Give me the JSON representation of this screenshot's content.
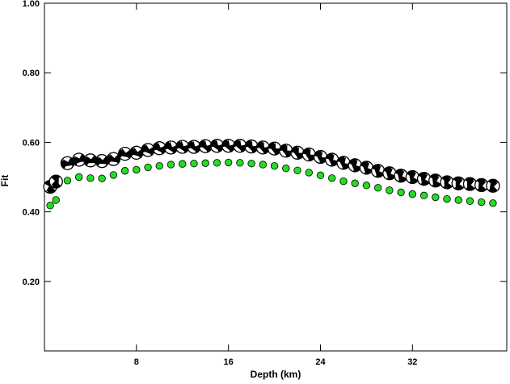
{
  "chart_data": {
    "type": "scatter",
    "title": "",
    "xlabel": "Depth (km)",
    "ylabel": "Fit",
    "xlim": [
      0,
      40.2
    ],
    "ylim": [
      0,
      1.0
    ],
    "xticks": [
      8,
      16,
      24,
      32
    ],
    "yticks": [
      0.2,
      0.4,
      0.6,
      0.8,
      1.0
    ],
    "ytick_labels": [
      "0.20",
      "0.40",
      "0.60",
      "0.80",
      "1.00"
    ],
    "grid": false,
    "colors": {
      "axes": "#000000",
      "mechanism_fill": "#000000",
      "mechanism_light": "#ffffff",
      "marker_fill": "#22dd22",
      "marker_stroke": "#000000"
    },
    "series": [
      {
        "style": "focal-mechanism",
        "x": [
          0.5,
          1,
          2,
          3,
          4,
          5,
          6,
          7,
          8,
          9,
          10,
          11,
          12,
          13,
          14,
          15,
          16,
          17,
          18,
          19,
          20,
          21,
          22,
          23,
          24,
          25,
          26,
          27,
          28,
          29,
          30,
          31,
          32,
          33,
          34,
          35,
          36,
          37,
          38,
          39
        ],
        "y": [
          0.472,
          0.487,
          0.54,
          0.55,
          0.548,
          0.546,
          0.552,
          0.567,
          0.57,
          0.578,
          0.583,
          0.585,
          0.587,
          0.587,
          0.589,
          0.59,
          0.59,
          0.59,
          0.588,
          0.585,
          0.582,
          0.576,
          0.57,
          0.565,
          0.558,
          0.55,
          0.541,
          0.534,
          0.527,
          0.518,
          0.511,
          0.504,
          0.5,
          0.495,
          0.49,
          0.485,
          0.482,
          0.48,
          0.477,
          0.475
        ],
        "rotation": [
          30,
          40,
          120,
          115,
          125,
          130,
          135,
          140,
          145,
          150,
          155,
          160,
          160,
          162,
          165,
          165,
          168,
          170,
          172,
          175,
          178,
          180,
          182,
          185,
          188,
          190,
          192,
          195,
          198,
          200,
          202,
          205,
          208,
          210,
          212,
          215,
          218,
          220,
          222,
          225
        ]
      },
      {
        "style": "green-dot",
        "x": [
          0.5,
          1,
          2,
          3,
          4,
          5,
          6,
          7,
          8,
          9,
          10,
          11,
          12,
          13,
          14,
          15,
          16,
          17,
          18,
          19,
          20,
          21,
          22,
          23,
          24,
          25,
          26,
          27,
          28,
          29,
          30,
          31,
          32,
          33,
          34,
          35,
          36,
          37,
          38,
          39
        ],
        "y": [
          0.418,
          0.434,
          0.49,
          0.5,
          0.497,
          0.496,
          0.506,
          0.518,
          0.521,
          0.528,
          0.532,
          0.536,
          0.538,
          0.539,
          0.54,
          0.541,
          0.542,
          0.541,
          0.539,
          0.536,
          0.532,
          0.525,
          0.519,
          0.513,
          0.505,
          0.497,
          0.488,
          0.482,
          0.476,
          0.469,
          0.462,
          0.456,
          0.451,
          0.447,
          0.442,
          0.437,
          0.434,
          0.431,
          0.428,
          0.425
        ]
      }
    ]
  }
}
